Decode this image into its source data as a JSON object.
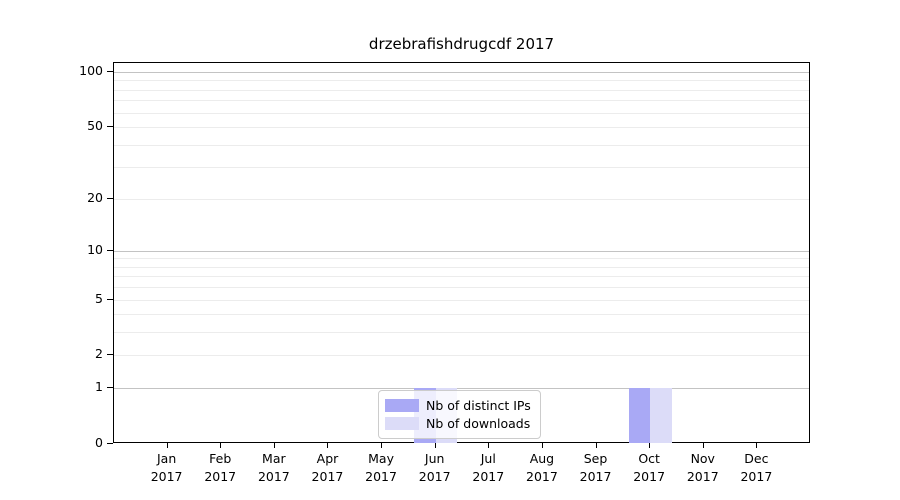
{
  "title": "drzebrafishdrugcdf 2017",
  "chart_data": {
    "type": "bar",
    "title": "drzebrafishdrugcdf 2017",
    "categories": [
      "Jan",
      "Feb",
      "Mar",
      "Apr",
      "May",
      "Jun",
      "Jul",
      "Aug",
      "Sep",
      "Oct",
      "Nov",
      "Dec"
    ],
    "year": "2017",
    "series": [
      {
        "name": "Nb of distinct IPs",
        "color": "#a9a9f5",
        "values": [
          0,
          0,
          0,
          0,
          0,
          1,
          0,
          0,
          0,
          1,
          0,
          0
        ]
      },
      {
        "name": "Nb of downloads",
        "color": "#dcdcf8",
        "values": [
          0,
          0,
          0,
          0,
          0,
          1,
          0,
          0,
          0,
          1,
          0,
          0
        ]
      }
    ],
    "xlabel": "",
    "ylabel": "",
    "yscale": "log1p",
    "ylim": [
      0,
      113
    ],
    "yticks": [
      0,
      1,
      2,
      5,
      10,
      20,
      50,
      100
    ],
    "grid_major_values": [
      1,
      10,
      100
    ],
    "grid_minor_values": [
      2,
      3,
      4,
      5,
      6,
      7,
      8,
      9,
      20,
      30,
      40,
      50,
      60,
      70,
      80,
      90
    ],
    "legend_position": "lower-center-inside",
    "colors": {
      "grid_major": "#c3c3c3",
      "grid_minor": "#ececec",
      "axis": "#000000",
      "background": "#ffffff"
    }
  }
}
